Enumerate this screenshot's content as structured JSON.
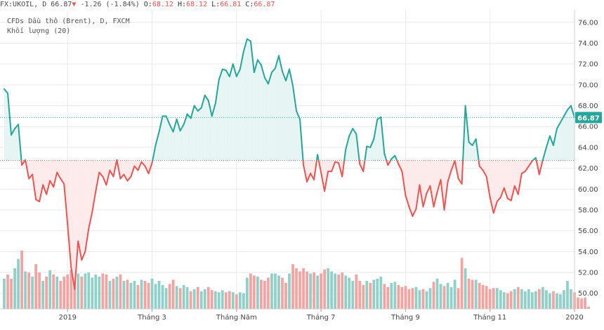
{
  "header": {
    "symbol": "FX:UKOIL, D",
    "last": "66.87",
    "change_arrow": "▼",
    "change": "-1.26 (-1.84%)",
    "o_label": "O:",
    "o_value": "68.12",
    "h_label": "H:",
    "h_value": "68.12",
    "l_label": "L:",
    "l_value": "66.81",
    "c_label": "C:",
    "c_value": "66.87"
  },
  "legend": {
    "title": "CFDs Dầu thô (Brent), D, FXCM",
    "volume": "Khối lượng (20)"
  },
  "chart_data": {
    "type": "line",
    "title": "CFDs Dầu thô (Brent), D, FXCM",
    "ylim": [
      48.5,
      77.2
    ],
    "y_ticks": [
      50,
      52,
      54,
      56,
      58,
      60,
      62,
      64,
      66,
      68,
      70,
      72,
      74,
      76
    ],
    "y_tick_labels": [
      "50.00",
      "52.00",
      "54.00",
      "56.00",
      "58.00",
      "60.00",
      "62.00",
      "64.00",
      "66.00",
      "68.00",
      "70.00",
      "72.00",
      "74.00",
      "76.00"
    ],
    "x_tick_labels": [
      "2019",
      "Tháng 3",
      "Tháng Năm",
      "Tháng 7",
      "Tháng 9",
      "Tháng 11",
      "2020"
    ],
    "x_tick_index": [
      18,
      42,
      66,
      90,
      114,
      138,
      162
    ],
    "baseline": 62.75,
    "last_value": 66.87,
    "last_value_label": "66.87",
    "colors": {
      "up": "#26a69a",
      "down": "#ef5350",
      "up_fill": "#e6f5f3",
      "down_fill": "#fdeaea",
      "volume_up": "#8fd0c8",
      "volume_down": "#f4a3a0",
      "grid": "#e9e9e9",
      "price_line": "#26a69a"
    },
    "series": [
      {
        "values": [
          69.6,
          69.2,
          65.2,
          65.8,
          66.2,
          62.3,
          62.8,
          61.0,
          61.4,
          59.0,
          58.8,
          60.4,
          59.5,
          60.8,
          60.2,
          61.6,
          61.0,
          60.5,
          56.6,
          52.5,
          50.4,
          55.0,
          53.2,
          54.0,
          56.2,
          57.8,
          59.8,
          61.6,
          61.2,
          60.4,
          61.8,
          61.2,
          62.8,
          61.0,
          61.4,
          60.8,
          61.2,
          62.2,
          61.8,
          62.6,
          62.2,
          61.5,
          62.5,
          64.2,
          65.5,
          67.0,
          67.0,
          66.2,
          65.5,
          66.7,
          65.6,
          66.2,
          67.2,
          66.8,
          68.0,
          67.5,
          67.8,
          69.0,
          68.5,
          67.0,
          68.2,
          70.5,
          71.5,
          71.4,
          70.8,
          72.0,
          70.8,
          71.5,
          73.2,
          74.4,
          74.2,
          71.2,
          72.4,
          71.9,
          70.7,
          70.1,
          71.2,
          71.6,
          72.8,
          71.3,
          70.4,
          71.5,
          69.9,
          67.5,
          66.7,
          62.3,
          60.7,
          61.5,
          60.9,
          63.3,
          61.6,
          59.8,
          61.7,
          61.7,
          62.6,
          62.5,
          61.2,
          63.8,
          65.1,
          65.8,
          65.3,
          62.4,
          61.7,
          64.1,
          64.0,
          64.8,
          66.7,
          66.9,
          63.4,
          62.3,
          62.9,
          63.2,
          62.4,
          61.7,
          59.4,
          58.3,
          57.4,
          58.1,
          60.4,
          58.3,
          59.6,
          60.3,
          58.3,
          59.7,
          60.9,
          58.0,
          60.7,
          61.8,
          62.7,
          61.0,
          60.5,
          68.0,
          64.5,
          64.2,
          64.8,
          62.2,
          61.8,
          61.2,
          59.2,
          57.7,
          58.8,
          59.2,
          60.1,
          59.1,
          58.9,
          60.3,
          59.5,
          61.5,
          61.7,
          62.2,
          62.7,
          63.0,
          61.4,
          62.8,
          64.0,
          65.1,
          64.2,
          65.8,
          66.4,
          67.0,
          67.6,
          68.0,
          66.87
        ]
      }
    ],
    "volume": [
      51.4,
      51.8,
      51.4,
      52.4,
      53.3,
      54.1,
      52.1,
      52.0,
      51.6,
      52.8,
      52.0,
      51.2,
      51.6,
      52.2,
      51.8,
      51.6,
      51.2,
      51.6,
      51.8,
      52.2,
      52.4,
      51.9,
      51.6,
      51.9,
      52.0,
      51.5,
      51.8,
      51.6,
      51.9,
      51.8,
      51.2,
      51.4,
      51.6,
      51.8,
      51.2,
      51.3,
      51.0,
      51.2,
      50.8,
      51.3,
      51.2,
      51.0,
      51.4,
      50.9,
      51.2,
      50.8,
      50.5,
      50.9,
      51.3,
      50.7,
      50.5,
      50.8,
      50.6,
      50.2,
      50.4,
      50.6,
      50.2,
      50.4,
      50.6,
      50.3,
      50.2,
      50.1,
      50.3,
      50.1,
      50.2,
      50.1,
      49.9,
      50.1,
      50.0,
      51.5,
      51.9,
      51.7,
      51.6,
      51.3,
      51.2,
      51.5,
      51.9,
      51.9,
      51.7,
      51.5,
      51.0,
      51.9,
      52.8,
      52.4,
      52.1,
      52.4,
      52.1,
      51.9,
      52.0,
      51.7,
      51.9,
      52.3,
      52.4,
      52.1,
      51.9,
      51.8,
      52.0,
      51.7,
      51.5,
      51.2,
      51.8,
      51.2,
      50.8,
      51.2,
      51.0,
      51.3,
      51.4,
      51.6,
      50.9,
      50.6,
      51.0,
      51.1,
      50.8,
      50.6,
      50.7,
      50.4,
      50.5,
      50.6,
      50.3,
      50.4,
      50.2,
      50.5,
      51.1,
      51.4,
      50.9,
      50.7,
      51.0,
      50.6,
      51.3,
      50.5,
      53.4,
      52.4,
      51.4,
      51.3,
      51.3,
      51.0,
      50.8,
      50.7,
      50.4,
      50.5,
      50.5,
      50.3,
      50.1,
      50.0,
      50.2,
      50.4,
      50.6,
      50.4,
      50.2,
      50.4,
      50.1,
      50.2,
      50.4,
      50.6,
      50.3,
      50.0,
      50.2,
      50.0,
      49.9,
      50.3,
      51.2,
      50.4,
      50.1,
      49.6,
      49.5,
      49.6,
      48.7
    ]
  }
}
